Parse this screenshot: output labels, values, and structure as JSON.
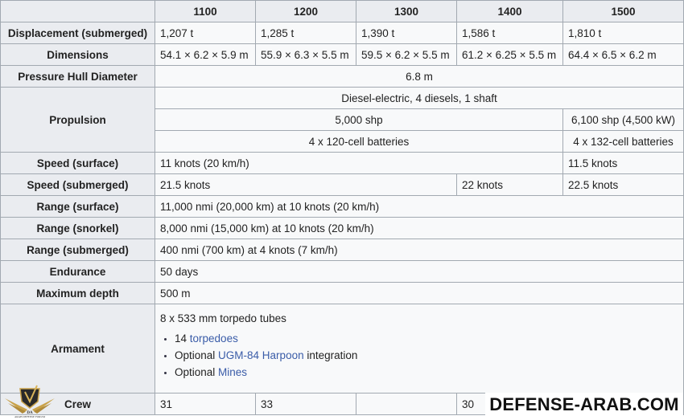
{
  "columns": [
    "",
    "1100",
    "1200",
    "1300",
    "1400",
    "1500"
  ],
  "rows": {
    "displacement": {
      "label": "Displacement (submerged)",
      "values": [
        "1,207 t",
        "1,285 t",
        "1,390 t",
        "1,586 t",
        "1,810 t"
      ]
    },
    "dimensions": {
      "label": "Dimensions",
      "values": [
        "54.1 × 6.2 × 5.9 m",
        "55.9 × 6.3 × 5.5 m",
        "59.5 × 6.2 × 5.5 m",
        "61.2 × 6.25 × 5.5 m",
        "64.4 × 6.5 × 6.2 m"
      ]
    },
    "hull": {
      "label": "Pressure Hull Diameter",
      "value": "6.8 m"
    },
    "propulsion": {
      "label": "Propulsion",
      "engine": "Diesel-electric, 4 diesels, 1 shaft",
      "power_a": "5,000 shp",
      "power_b": "6,100 shp (4,500 kW)",
      "batt_a": "4 x 120-cell batteries",
      "batt_b": "4 x 132-cell batteries"
    },
    "speed_surface": {
      "label": "Speed (surface)",
      "a": "11 knots (20 km/h)",
      "b": "11.5 knots"
    },
    "speed_sub": {
      "label": "Speed (submerged)",
      "a": "21.5 knots",
      "b": "22 knots",
      "c": "22.5 knots"
    },
    "range_surface": {
      "label": "Range (surface)",
      "value": "11,000 nmi (20,000 km) at 10 knots (20 km/h)"
    },
    "range_snorkel": {
      "label": "Range (snorkel)",
      "value": "8,000 nmi (15,000 km) at 10 knots (20 km/h)"
    },
    "range_sub": {
      "label": "Range (submerged)",
      "value": "400 nmi (700 km) at 4 knots (7 km/h)"
    },
    "endurance": {
      "label": "Endurance",
      "value": "50 days"
    },
    "depth": {
      "label": "Maximum depth",
      "value": "500 m"
    },
    "armament": {
      "label": "Armament",
      "tubes": "8 x 533 mm torpedo tubes",
      "items": [
        {
          "pre": "14 ",
          "link": "torpedoes",
          "post": ""
        },
        {
          "pre": "Optional ",
          "link": "UGM-84 Harpoon",
          "post": " integration"
        },
        {
          "pre": "Optional ",
          "link": "Mines",
          "post": ""
        }
      ]
    },
    "crew": {
      "label": "Crew",
      "values": [
        "31",
        "33",
        "",
        "30",
        ""
      ]
    }
  },
  "watermark": "DEFENSE-ARAB.COM",
  "logo_text": "DA ARAB DEFENSE FORUM",
  "colors": {
    "link": "#3a5ca8",
    "header_bg": "#eaecf0",
    "border": "#a2a9b1"
  }
}
